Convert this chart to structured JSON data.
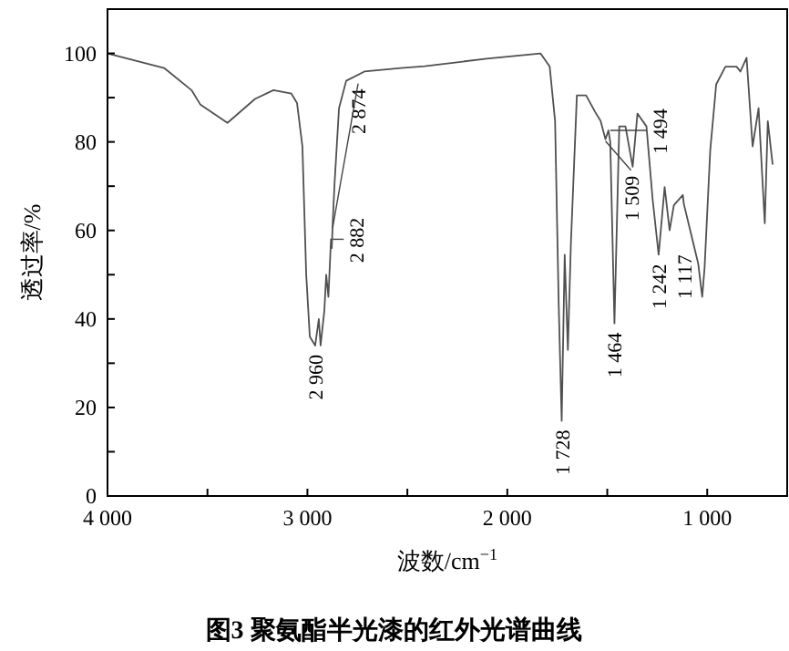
{
  "chart_data": {
    "type": "line",
    "title": "图3 聚氨酯半光漆的红外光谱曲线",
    "xlabel": "波数/cm$^{−1}$",
    "ylabel": "透过率/%",
    "x": [
      4000,
      3717,
      3580,
      3535,
      3400,
      3262,
      3170,
      3080,
      3052,
      3025,
      3006,
      2988,
      2961,
      2943,
      2934,
      2915,
      2906,
      2895,
      2882,
      2878,
      2874,
      2865,
      2842,
      2806,
      2715,
      2532,
      2414,
      2104,
      1834,
      1788,
      1761,
      1743,
      1728,
      1713,
      1697,
      1682,
      1652,
      1606,
      1561,
      1533,
      1509,
      1494,
      1485,
      1464,
      1440,
      1409,
      1373,
      1349,
      1304,
      1273,
      1243,
      1213,
      1188,
      1167,
      1122,
      1117,
      1045,
      1025,
      1013,
      985,
      955,
      909,
      853,
      834,
      803,
      773,
      743,
      712,
      697,
      673
    ],
    "series": [
      {
        "color": "#505050",
        "values": [
          100,
          96.7,
          91.7,
          88.4,
          84.3,
          89.7,
          91.7,
          90.9,
          88.8,
          79,
          50,
          36,
          34,
          40,
          34,
          42,
          50,
          45,
          58,
          56,
          61,
          70,
          87.6,
          93.8,
          95.9,
          96.7,
          97.1,
          98.8,
          100,
          97,
          84.7,
          43.4,
          17,
          54.5,
          33,
          57,
          90.5,
          90.5,
          86.8,
          84.7,
          80.6,
          82.6,
          80,
          39,
          83.5,
          83.5,
          74.4,
          86.4,
          83.5,
          67,
          54.5,
          69.8,
          60,
          65.7,
          68,
          66,
          52.5,
          45,
          51.7,
          78,
          93,
          97,
          97,
          95.9,
          99,
          79,
          87.6,
          61.6,
          84.7,
          75
        ]
      }
    ],
    "xlim": [
      4000,
      600
    ],
    "ylim": [
      0,
      110
    ],
    "xticks": [
      {
        "value": 4000,
        "label": "4 000"
      },
      {
        "value": 3500,
        "label": null
      },
      {
        "value": 3000,
        "label": "3 000"
      },
      {
        "value": 2500,
        "label": null
      },
      {
        "value": 2000,
        "label": "2 000"
      },
      {
        "value": 1500,
        "label": null
      },
      {
        "value": 1000,
        "label": "1 000"
      }
    ],
    "yticks": [
      0,
      {
        "value": 10,
        "label": null
      },
      20,
      {
        "value": 30,
        "label": null
      },
      40,
      {
        "value": 50,
        "label": null
      },
      60,
      {
        "value": 70,
        "label": null
      },
      80,
      {
        "value": 90,
        "label": null
      },
      100
    ],
    "grid": false,
    "marker": "none",
    "line_style": "solid",
    "annotations": [
      {
        "text": "2 960",
        "x": 2960,
        "y": 34
      },
      {
        "text": "2 882",
        "x": 2882,
        "y": 58
      },
      {
        "text": "2 874",
        "x": 2874,
        "y": 61
      },
      {
        "text": "1 728",
        "x": 1728,
        "y": 17
      },
      {
        "text": "1 509",
        "x": 1509,
        "y": 80.6
      },
      {
        "text": "1 494",
        "x": 1494,
        "y": 82.6
      },
      {
        "text": "1 464",
        "x": 1464,
        "y": 39
      },
      {
        "text": "1 242",
        "x": 1242,
        "y": 54.5
      },
      {
        "text": "1 117",
        "x": 1117,
        "y": 66
      }
    ]
  }
}
